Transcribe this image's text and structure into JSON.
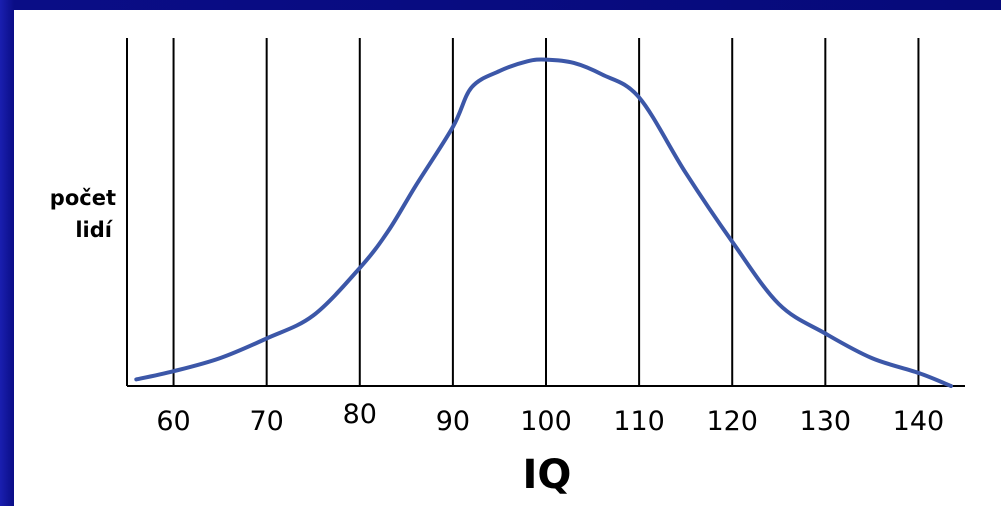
{
  "chart_data": {
    "type": "line",
    "xlabel": "IQ",
    "ylabel_lines": [
      "počet",
      "lidí"
    ],
    "xlim": [
      55,
      145
    ],
    "ylim": [
      0,
      1
    ],
    "xticks": [
      60,
      70,
      80,
      90,
      100,
      110,
      120,
      130,
      140
    ],
    "grid": true,
    "series": [
      {
        "color": "#3c57a8",
        "x": [
          56,
          60,
          65,
          70,
          75,
          80,
          83,
          86,
          90,
          92,
          95,
          98,
          100,
          103,
          106,
          110,
          115,
          120,
          125,
          130,
          135,
          140,
          143.5
        ],
        "y": [
          0.02,
          0.045,
          0.085,
          0.145,
          0.215,
          0.36,
          0.47,
          0.61,
          0.79,
          0.91,
          0.96,
          0.99,
          0.995,
          0.985,
          0.95,
          0.88,
          0.65,
          0.44,
          0.25,
          0.16,
          0.085,
          0.04,
          0.0
        ]
      }
    ]
  }
}
